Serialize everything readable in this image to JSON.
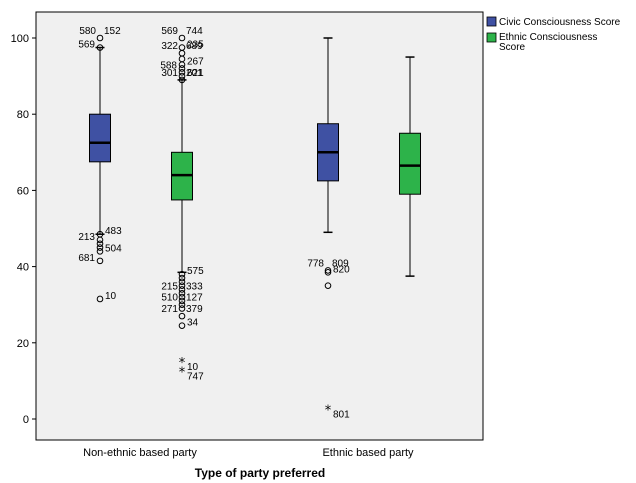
{
  "chart_data": {
    "type": "boxplot",
    "title": "",
    "xlabel": "Type of party preferred",
    "ylabel": "",
    "ylim": [
      -5,
      105
    ],
    "yticks": [
      0,
      20,
      40,
      60,
      80,
      100
    ],
    "grid": false,
    "legend_position": "top-right",
    "categories": [
      "Non-ethnic based party",
      "Ethnic based party"
    ],
    "series": [
      {
        "name": "Civic Consciousness Score",
        "color": "#3f51a3",
        "boxes": [
          {
            "category": "Non-ethnic based party",
            "whisker_low": 48.5,
            "q1": 67.5,
            "median": 72.5,
            "q3": 80,
            "whisker_high": 97.5,
            "outliers": [
              {
                "value": 100,
                "marker": "circle",
                "labels": [
                  "580",
                  "152"
                ]
              },
              {
                "value": 97.5,
                "marker": "circle",
                "labels": [
                  "569"
                ]
              },
              {
                "value": 48.5,
                "marker": "circle",
                "labels": [
                  "483"
                ]
              },
              {
                "value": 47,
                "marker": "circle",
                "labels": [
                  "213"
                ]
              },
              {
                "value": 46,
                "marker": "circle",
                "labels": []
              },
              {
                "value": 45,
                "marker": "circle",
                "labels": []
              },
              {
                "value": 44,
                "marker": "circle",
                "labels": [
                  "504"
                ]
              },
              {
                "value": 41.5,
                "marker": "circle",
                "labels": [
                  "681"
                ]
              },
              {
                "value": 31.5,
                "marker": "circle",
                "labels": [
                  "10"
                ]
              }
            ]
          },
          {
            "category": "Ethnic based party",
            "whisker_low": 49,
            "q1": 62.5,
            "median": 70,
            "q3": 77.5,
            "whisker_high": 100,
            "outliers": [
              {
                "value": 39,
                "marker": "circle",
                "labels": [
                  "778",
                  "809"
                ]
              },
              {
                "value": 38.5,
                "marker": "circle",
                "labels": [
                  "820"
                ]
              },
              {
                "value": 35,
                "marker": "circle",
                "labels": []
              },
              {
                "value": 2.5,
                "marker": "star",
                "labels": [
                  "801"
                ]
              }
            ]
          }
        ]
      },
      {
        "name": "Ethnic Consciousness Score",
        "color": "#2db34a",
        "boxes": [
          {
            "category": "Non-ethnic based party",
            "whisker_low": 38.5,
            "q1": 57.5,
            "median": 64,
            "q3": 70,
            "whisker_high": 89,
            "outliers": [
              {
                "value": 100,
                "marker": "circle",
                "labels": [
                  "569",
                  "744"
                ]
              },
              {
                "value": 97.5,
                "marker": "circle",
                "labels": [
                  "235"
                ]
              },
              {
                "value": 96,
                "marker": "circle",
                "labels": [
                  "322",
                  "689"
                ]
              },
              {
                "value": 94.5,
                "marker": "circle",
                "labels": []
              },
              {
                "value": 93,
                "marker": "circle",
                "labels": [
                  "267"
                ]
              },
              {
                "value": 92,
                "marker": "circle",
                "labels": [
                  "588"
                ]
              },
              {
                "value": 91,
                "marker": "circle",
                "labels": []
              },
              {
                "value": 90,
                "marker": "circle",
                "labels": [
                  "621"
                ]
              },
              {
                "value": 89,
                "marker": "circle",
                "labels": [
                  "301",
                  "201"
                ]
              },
              {
                "value": 38,
                "marker": "circle",
                "labels": [
                  "575"
                ]
              },
              {
                "value": 37,
                "marker": "circle",
                "labels": []
              },
              {
                "value": 36,
                "marker": "circle",
                "labels": []
              },
              {
                "value": 35,
                "marker": "circle",
                "labels": []
              },
              {
                "value": 34,
                "marker": "circle",
                "labels": []
              },
              {
                "value": 33,
                "marker": "circle",
                "labels": [
                  "215",
                  "333"
                ]
              },
              {
                "value": 32,
                "marker": "circle",
                "labels": []
              },
              {
                "value": 31,
                "marker": "circle",
                "labels": []
              },
              {
                "value": 30,
                "marker": "circle",
                "labels": [
                  "510",
                  "127"
                ]
              },
              {
                "value": 29,
                "marker": "circle",
                "labels": []
              },
              {
                "value": 27,
                "marker": "circle",
                "labels": [
                  "271",
                  "379"
                ]
              },
              {
                "value": 24.5,
                "marker": "circle",
                "labels": [
                  "34"
                ]
              },
              {
                "value": 15,
                "marker": "star",
                "labels": [
                  "10"
                ]
              },
              {
                "value": 12.5,
                "marker": "star",
                "labels": [
                  "747"
                ]
              }
            ]
          },
          {
            "category": "Ethnic based party",
            "whisker_low": 37.5,
            "q1": 59,
            "median": 66.5,
            "q3": 75,
            "whisker_high": 95,
            "outliers": []
          }
        ]
      }
    ]
  }
}
